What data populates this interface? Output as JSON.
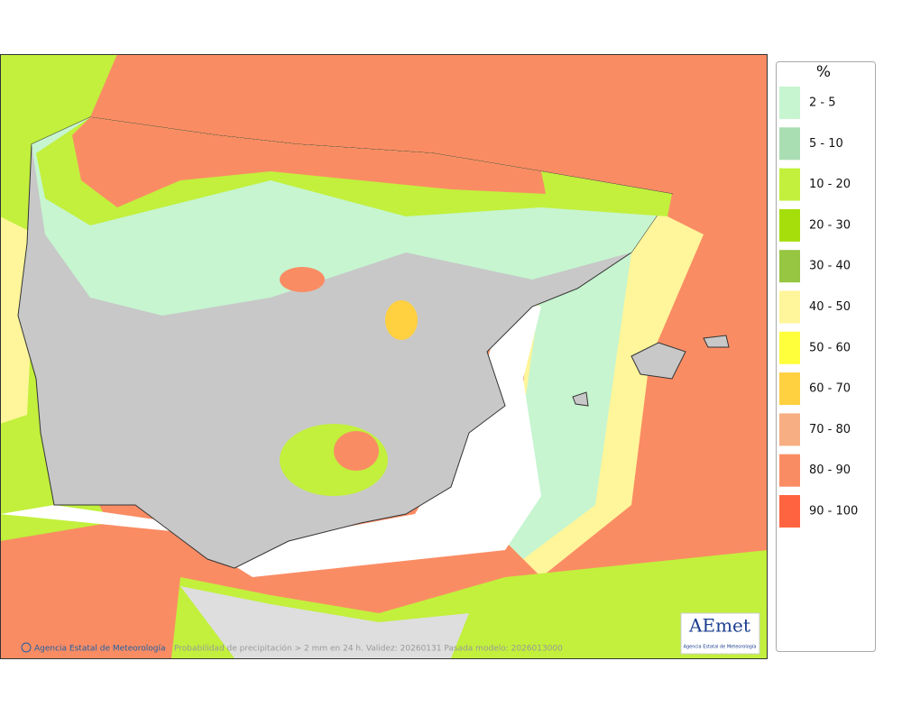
{
  "legend": {
    "title": "%",
    "items": [
      {
        "label": "2 - 5",
        "color": "#c6f5d0"
      },
      {
        "label": "5 - 10",
        "color": "#a9ddb2"
      },
      {
        "label": "10 - 20",
        "color": "#c2f03c"
      },
      {
        "label": "20 - 30",
        "color": "#a6de0c"
      },
      {
        "label": "30 - 40",
        "color": "#96c642"
      },
      {
        "label": "40 - 50",
        "color": "#fff59a"
      },
      {
        "label": "50 - 60",
        "color": "#ffff3c"
      },
      {
        "label": "60 - 70",
        "color": "#ffd040"
      },
      {
        "label": "70 - 80",
        "color": "#f6ae82"
      },
      {
        "label": "80 - 90",
        "color": "#fa8c64"
      },
      {
        "label": "90 - 100",
        "color": "#ff6440"
      }
    ]
  },
  "footer": {
    "credit": "Agencia Estatal de Meteorología",
    "caption": "Probabilidad de precipitación > 2 mm en 24 h. Validez: 20260131 Pasada modelo: 2026013000"
  },
  "logo": {
    "text": "AEmet",
    "subtitle": "Agencia Estatal de Meteorología"
  }
}
